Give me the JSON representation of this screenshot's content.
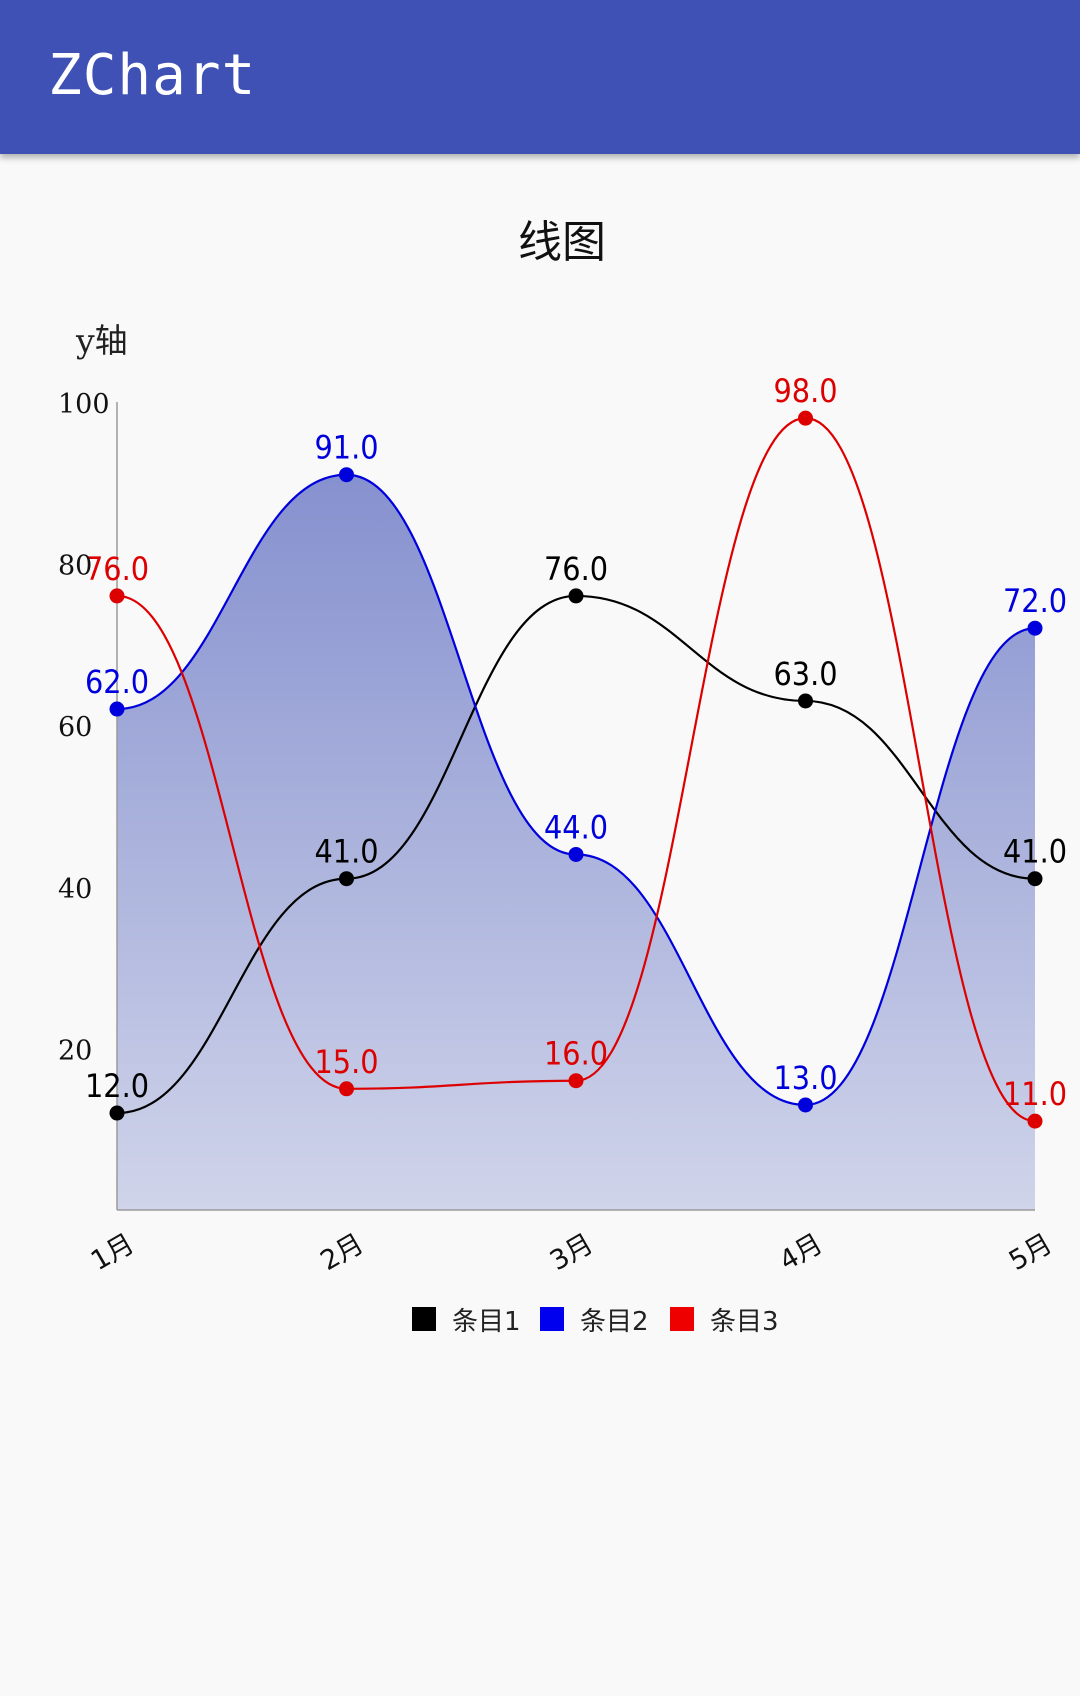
{
  "app": {
    "title": "ZChart"
  },
  "chart_data": {
    "type": "line",
    "title": "线图",
    "xlabel": "",
    "ylabel": "y轴",
    "categories": [
      "1月",
      "2月",
      "3月",
      "4月",
      "5月"
    ],
    "yticks": [
      "20",
      "40",
      "60",
      "80",
      "100"
    ],
    "ylim": [
      0,
      100
    ],
    "series": [
      {
        "name": "条目1",
        "color": "#000000",
        "values": [
          12.0,
          41.0,
          76.0,
          63.0,
          41.0
        ],
        "labels": [
          "12.0",
          "41.0",
          "76.0",
          "63.0",
          "41.0"
        ],
        "fill": false
      },
      {
        "name": "条目2",
        "color": "#0000dd",
        "values": [
          62.0,
          91.0,
          44.0,
          13.0,
          72.0
        ],
        "labels": [
          "62.0",
          "91.0",
          "44.0",
          "13.0",
          "72.0"
        ],
        "fill": true
      },
      {
        "name": "条目3",
        "color": "#dd0000",
        "values": [
          76.0,
          15.0,
          16.0,
          98.0,
          11.0
        ],
        "labels": [
          "76.0",
          "15.0",
          "16.0",
          "98.0",
          "11.0"
        ],
        "fill": false
      }
    ],
    "area_fill_color": "#3f51b5",
    "grid": false,
    "legend": "bottom"
  }
}
